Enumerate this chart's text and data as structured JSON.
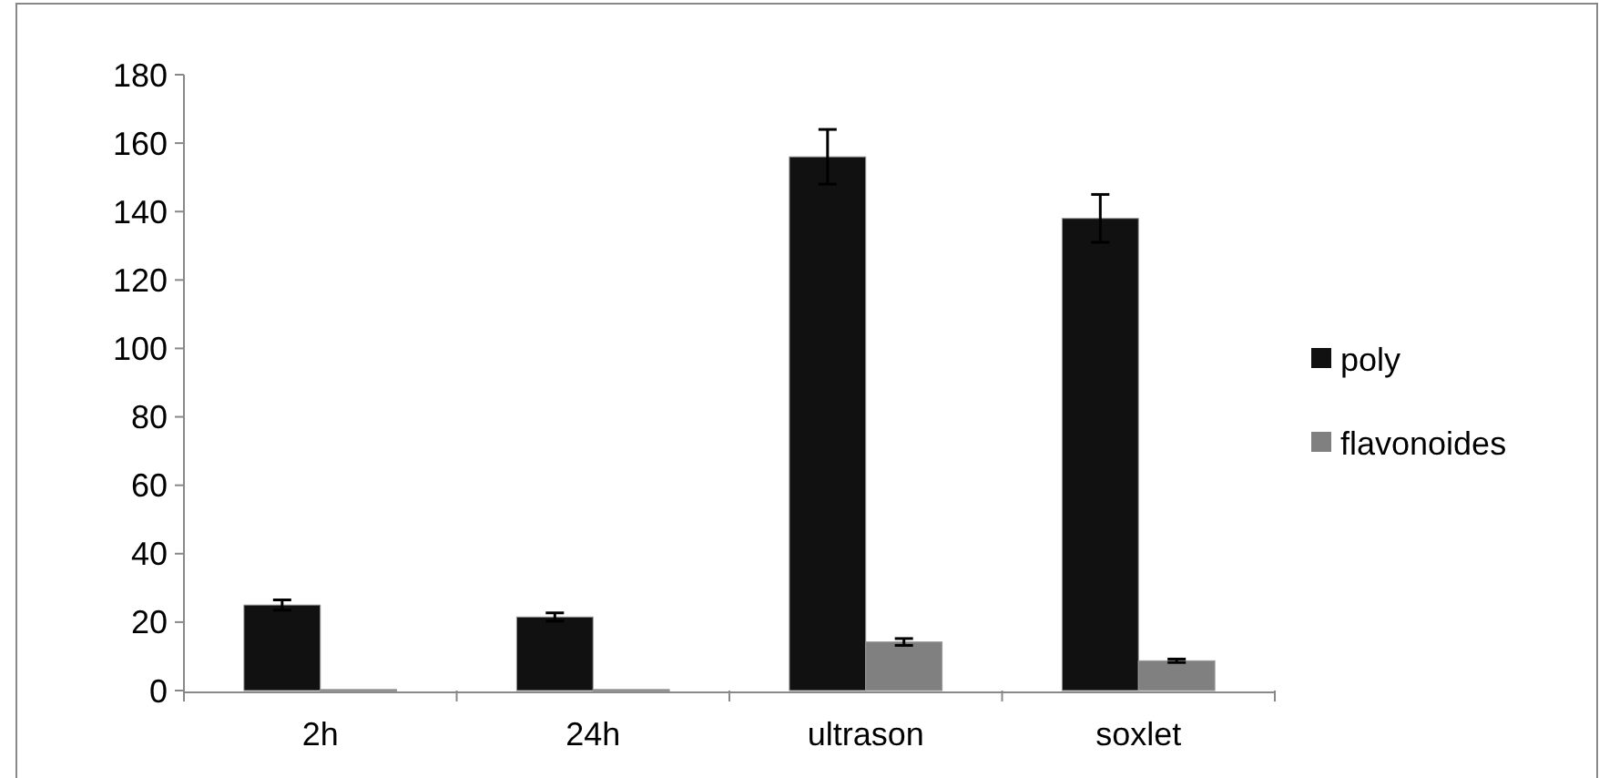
{
  "chart_data": {
    "type": "bar",
    "categories": [
      "2h",
      "24h",
      "ultrason",
      "soxlet"
    ],
    "series": [
      {
        "name": "poly",
        "color": "#111111",
        "values": [
          25,
          21.5,
          156,
          138
        ],
        "errors": [
          1.5,
          1.2,
          8,
          7
        ]
      },
      {
        "name": "flavonoides",
        "color": "#808080",
        "values": [
          0.3,
          0.3,
          14.2,
          8.7
        ],
        "errors": [
          null,
          null,
          1,
          0.5
        ]
      }
    ],
    "ylim": [
      0,
      180
    ],
    "yticks": [
      0,
      20,
      40,
      60,
      80,
      100,
      120,
      140,
      160,
      180
    ],
    "grid": false,
    "legend": "right"
  }
}
